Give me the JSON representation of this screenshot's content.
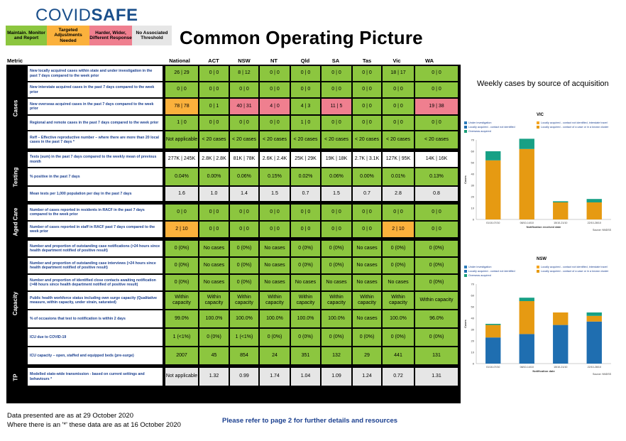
{
  "logo": {
    "part1": "COVID",
    "part2": "SAFE"
  },
  "legend": [
    {
      "label": "Maintain. Monitor and Report",
      "color": "#8cc63f"
    },
    {
      "label": "Targeted Adjustments Needed",
      "color": "#fbb13c"
    },
    {
      "label": "Harder, Wider, Different Response",
      "color": "#ef7f8f"
    },
    {
      "label": "No Associated Threshold",
      "color": "#e6e6e6"
    }
  ],
  "title": "Common Operating Picture",
  "columns": {
    "metric": "Metric",
    "jurisdictions": [
      "National",
      "ACT",
      "NSW",
      "NT",
      "Qld",
      "SA",
      "Tas",
      "Vic",
      "WA"
    ]
  },
  "sections": [
    {
      "name": "Cases",
      "rows": [
        {
          "metric": "New locally acquired cases within state and under investigation in the past 7 days compared to the week prior",
          "values": [
            "26 | 29",
            "0 | 0",
            "8 | 12",
            "0 | 0",
            "0 | 0",
            "0 | 0",
            "0 | 0",
            "18 | 17",
            "0 | 0"
          ],
          "colors": [
            "g",
            "g",
            "g",
            "g",
            "g",
            "g",
            "g",
            "g",
            "g"
          ]
        },
        {
          "metric": "New interstate acquired cases in the past 7 days compared to the week prior",
          "values": [
            "0 | 0",
            "0 | 0",
            "0 | 0",
            "0 | 0",
            "0 | 0",
            "0 | 0",
            "0 | 0",
            "0 | 0",
            "0 | 0"
          ],
          "colors": [
            "g",
            "g",
            "g",
            "g",
            "g",
            "g",
            "g",
            "g",
            "g"
          ]
        },
        {
          "metric": "New overseas acquired cases in the past 7 days compared to the week prior",
          "values": [
            "78 | 78",
            "0 | 1",
            "40 | 31",
            "4 | 0",
            "4 | 3",
            "11 | 5",
            "0 | 0",
            "0 | 0",
            "19 | 38"
          ],
          "colors": [
            "o",
            "g",
            "r",
            "r",
            "g",
            "r",
            "g",
            "g",
            "r"
          ]
        },
        {
          "metric": "Regional and remote cases in the past 7 days compared to the week prior",
          "values": [
            "1 | 0",
            "0 | 0",
            "0 | 0",
            "0 | 0",
            "1 | 0",
            "0 | 0",
            "0 | 0",
            "0 | 0",
            "0 | 0"
          ],
          "colors": [
            "g",
            "g",
            "g",
            "g",
            "g",
            "g",
            "g",
            "g",
            "g"
          ]
        },
        {
          "metric": "Reff – Effective reproductive number – where there are more than 20 local cases in the past 7 days *",
          "values": [
            "Not applicable",
            "< 20 cases",
            "< 20 cases",
            "< 20 cases",
            "< 20 cases",
            "< 20 cases",
            "< 20 cases",
            "< 20 cases",
            "< 20 cases"
          ],
          "colors": [
            "g",
            "g",
            "g",
            "g",
            "g",
            "g",
            "g",
            "g",
            "g"
          ]
        }
      ]
    },
    {
      "name": "Testing",
      "rows": [
        {
          "metric": "Tests (sum) in the past 7 days compared to the weekly mean of previous month",
          "values": [
            "277K | 245K",
            "2.8K | 2.8K",
            "81K | 78K",
            "2.6K | 2.4K",
            "25K | 29K",
            "19K | 18K",
            "2.7K | 3.1K",
            "127K | 95K",
            "14K | 16K"
          ],
          "colors": [
            "w",
            "w",
            "w",
            "w",
            "w",
            "w",
            "w",
            "w",
            "w"
          ]
        },
        {
          "metric": "% positive in the past 7 days",
          "values": [
            "0.04%",
            "0.00%",
            "0.06%",
            "0.15%",
            "0.02%",
            "0.06%",
            "0.00%",
            "0.01%",
            "0.13%"
          ],
          "colors": [
            "g",
            "g",
            "g",
            "g",
            "g",
            "g",
            "g",
            "g",
            "g"
          ]
        },
        {
          "metric": "Mean tests per 1,000 population per day in the past 7 days",
          "values": [
            "1.6",
            "1.0",
            "1.4",
            "1.5",
            "0.7",
            "1.5",
            "0.7",
            "2.8",
            "0.8"
          ],
          "colors": [
            "grey",
            "grey",
            "grey",
            "grey",
            "grey",
            "grey",
            "grey",
            "grey",
            "grey"
          ]
        }
      ]
    },
    {
      "name": "Aged Care",
      "rows": [
        {
          "metric": "Number of cases reported in residents in RACF in the past 7 days compared to the week prior",
          "values": [
            "0 | 0",
            "0 | 0",
            "0 | 0",
            "0 | 0",
            "0 | 0",
            "0 | 0",
            "0 | 0",
            "0 | 0",
            "0 | 0"
          ],
          "colors": [
            "g",
            "g",
            "g",
            "g",
            "g",
            "g",
            "g",
            "g",
            "g"
          ]
        },
        {
          "metric": "Number of cases reported in staff in RACF past 7 days compared to the week prior",
          "values": [
            "2 | 10",
            "0 | 0",
            "0 | 0",
            "0 | 0",
            "0 | 0",
            "0 | 0",
            "0 | 0",
            "2 | 10",
            "0 | 0"
          ],
          "colors": [
            "o",
            "g",
            "g",
            "g",
            "g",
            "g",
            "g",
            "o",
            "g"
          ]
        }
      ]
    },
    {
      "name": "Capacity",
      "rows": [
        {
          "metric": "Number and proportion of outstanding case notifications (>24 hours since health department notified of positive result)",
          "values": [
            "0 (0%)",
            "No cases",
            "0 (0%)",
            "No cases",
            "0 (0%)",
            "0 (0%)",
            "No cases",
            "0 (0%)",
            "0 (0%)"
          ],
          "colors": [
            "g",
            "g",
            "g",
            "g",
            "g",
            "g",
            "g",
            "g",
            "g"
          ]
        },
        {
          "metric": "Number and proportion of outstanding case interviews (>24 hours since health department notified of positive result)",
          "values": [
            "0 (0%)",
            "No cases",
            "0 (0%)",
            "No cases",
            "0 (0%)",
            "0 (0%)",
            "No cases",
            "0 (0%)",
            "0 (0%)"
          ],
          "colors": [
            "g",
            "g",
            "g",
            "g",
            "g",
            "g",
            "g",
            "g",
            "g"
          ]
        },
        {
          "metric": "Number and proportion of identified close contacts awaiting notification (>48 hours since health department notified of positive result)",
          "values": [
            "0 (0%)",
            "No cases",
            "0 (0%)",
            "No cases",
            "No cases",
            "No cases",
            "No cases",
            "No cases",
            "0 (0%)"
          ],
          "colors": [
            "g",
            "g",
            "g",
            "g",
            "g",
            "g",
            "g",
            "g",
            "g"
          ]
        },
        {
          "metric": "Public health workforce status including own surge capacity (Qualitative measure, within capacity, under strain, saturated)",
          "values": [
            "Within capacity",
            "Within capacity",
            "Within capacity",
            "Within capacity",
            "Within capacity",
            "Within capacity",
            "Within capacity",
            "Within capacity",
            "Within capacity"
          ],
          "colors": [
            "g",
            "g",
            "g",
            "g",
            "g",
            "g",
            "g",
            "g",
            "g"
          ]
        },
        {
          "metric": "% of occasions that test to notification is within 2 days",
          "values": [
            "99.0%",
            "100.0%",
            "100.0%",
            "100.0%",
            "100.0%",
            "100.0%",
            "No cases",
            "100.0%",
            "96.0%"
          ],
          "colors": [
            "g",
            "g",
            "g",
            "g",
            "g",
            "g",
            "g",
            "g",
            "g"
          ]
        },
        {
          "metric": "ICU due to COVID-19",
          "values": [
            "1 (<1%)",
            "0 (0%)",
            "1 (<1%)",
            "0 (0%)",
            "0 (0%)",
            "0 (0%)",
            "0 (0%)",
            "0 (0%)",
            "0 (0%)"
          ],
          "colors": [
            "g",
            "g",
            "g",
            "g",
            "g",
            "g",
            "g",
            "g",
            "g"
          ]
        },
        {
          "metric": "ICU capacity – open, staffed and equipped beds (pre-surge)",
          "values": [
            "2007",
            "45",
            "854",
            "24",
            "351",
            "132",
            "29",
            "441",
            "131"
          ],
          "colors": [
            "g",
            "g",
            "g",
            "g",
            "g",
            "g",
            "g",
            "g",
            "g"
          ]
        }
      ]
    },
    {
      "name": "TP",
      "rows": [
        {
          "metric": "Modelled state-wide transmission - based on current settings and behaviours *",
          "values": [
            "Not applicable",
            "1.32",
            "0.99",
            "1.74",
            "1.04",
            "1.09",
            "1.24",
            "0.72",
            "1.31"
          ],
          "colors": [
            "grey",
            "grey",
            "grey",
            "grey",
            "grey",
            "grey",
            "grey",
            "grey",
            "grey"
          ]
        }
      ]
    }
  ],
  "charts_caption": "Weekly cases by source of acquisition",
  "chart_data": [
    {
      "type": "bar",
      "title": "VIC",
      "stacked": true,
      "categories": [
        "01/10-07/10",
        "08/10-14/10",
        "15/10-21/10",
        "22/10-28/10"
      ],
      "series": [
        {
          "name": "Under investigation",
          "color": "#2b7bba",
          "values": [
            0,
            0,
            0,
            0
          ]
        },
        {
          "name": "Locally acquired - contact not identified",
          "color": "#1f6eb0",
          "values": [
            0,
            0,
            0,
            0
          ]
        },
        {
          "name": "Overseas acquired",
          "color": "#1a9e77",
          "values": [
            0,
            0,
            0,
            0
          ]
        },
        {
          "name": "Locally acquired - contact not identified, interstate travel",
          "color": "#f5a623",
          "values": [
            0,
            0,
            0,
            0
          ]
        },
        {
          "name": "Locally acquired - contact of a case or in a known cluster",
          "color": "#e69a12",
          "values": [
            52,
            62,
            15,
            15
          ]
        },
        {
          "name": "",
          "color": "#17a085",
          "values": [
            8,
            9,
            1,
            3
          ]
        }
      ],
      "ylim": [
        0,
        70
      ],
      "yticks": [
        0,
        10,
        20,
        30,
        40,
        50,
        60,
        70
      ],
      "xlabel": "Notification received date",
      "ylabel": "Cases",
      "source": "Source: NNDSS"
    },
    {
      "type": "bar",
      "title": "NSW",
      "stacked": true,
      "categories": [
        "01/10-07/10",
        "08/10-14/10",
        "15/10-21/10",
        "22/10-28/10"
      ],
      "series": [
        {
          "name": "Under investigation",
          "color": "#2b7bba",
          "values": [
            0,
            0,
            0,
            0
          ]
        },
        {
          "name": "Locally acquired - contact not identified",
          "color": "#1f6eb0",
          "values": [
            23,
            26,
            34,
            37
          ]
        },
        {
          "name": "Overseas acquired",
          "color": "#1a9e77",
          "values": [
            0,
            0,
            0,
            0
          ]
        },
        {
          "name": "Locally acquired - contact not identified, interstate travel",
          "color": "#f5a623",
          "values": [
            0,
            0,
            0,
            0
          ]
        },
        {
          "name": "Locally acquired - contact of a case or in a known cluster",
          "color": "#e69a12",
          "values": [
            11,
            29,
            11,
            5
          ]
        },
        {
          "name": "",
          "color": "#17a085",
          "values": [
            1,
            3,
            0,
            3
          ]
        }
      ],
      "ylim": [
        0,
        70
      ],
      "yticks": [
        0,
        10,
        20,
        30,
        40,
        50,
        60,
        70
      ],
      "xlabel": "Notification date",
      "ylabel": "Cases",
      "source": "Source: NNDSS"
    }
  ],
  "footer": {
    "line1": "Data presented are as at 29 October 2020",
    "line2": "Where there is an '*' these data are as at 16 October 2020",
    "refer": "Please refer to page 2 for further details and resources"
  }
}
